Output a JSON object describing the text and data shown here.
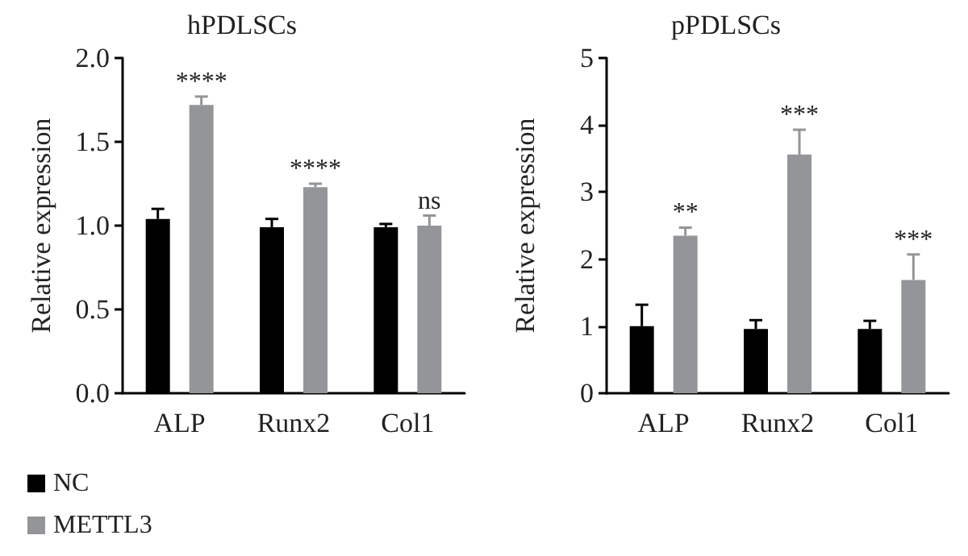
{
  "chart_data": [
    {
      "type": "bar",
      "title": "hPDLSCs",
      "ylabel": "Relative expression",
      "categories": [
        "ALP",
        "Runx2",
        "Col1"
      ],
      "series": [
        {
          "name": "NC",
          "color": "#000000",
          "values": [
            1.04,
            0.99,
            0.99
          ],
          "errors": [
            [
              1.04,
              1.1
            ],
            [
              0.99,
              1.04
            ],
            [
              0.99,
              1.01
            ]
          ]
        },
        {
          "name": "METTL3",
          "color": "#939598",
          "values": [
            1.72,
            1.23,
            1.0
          ],
          "errors": [
            [
              1.72,
              1.77
            ],
            [
              1.23,
              1.25
            ],
            [
              1.0,
              1.06
            ]
          ]
        }
      ],
      "ylim": [
        0,
        2
      ],
      "yticks": [
        {
          "value": 0,
          "label": "0.0"
        },
        {
          "value": 0.5,
          "label": "0.5"
        },
        {
          "value": 1,
          "label": "1.0"
        },
        {
          "value": 1.5,
          "label": "1.5"
        },
        {
          "value": 2,
          "label": "2.0"
        }
      ],
      "annotations": [
        "****",
        "****",
        "ns"
      ],
      "grid": false,
      "legend": "bottom left"
    },
    {
      "type": "bar",
      "title": "pPDLSCs",
      "ylabel": "Relative expression",
      "categories": [
        "ALP",
        "Runx2",
        "Col1"
      ],
      "series": [
        {
          "color": "#000000",
          "values": [
            1.0,
            0.96,
            0.96
          ],
          "errors": [
            [
              1.0,
              1.32
            ],
            [
              0.96,
              1.09
            ],
            [
              0.96,
              1.08
            ]
          ]
        },
        {
          "color": "#939598",
          "values": [
            2.35,
            3.56,
            1.69
          ],
          "errors": [
            [
              2.35,
              2.47
            ],
            [
              3.56,
              3.93
            ],
            [
              1.69,
              2.07
            ]
          ]
        }
      ],
      "ylim": [
        0,
        5
      ],
      "yticks": [
        0,
        1,
        2,
        3,
        4,
        5
      ],
      "annotations": [
        "**",
        "***",
        "***"
      ],
      "grid": false,
      "legend": false
    }
  ]
}
